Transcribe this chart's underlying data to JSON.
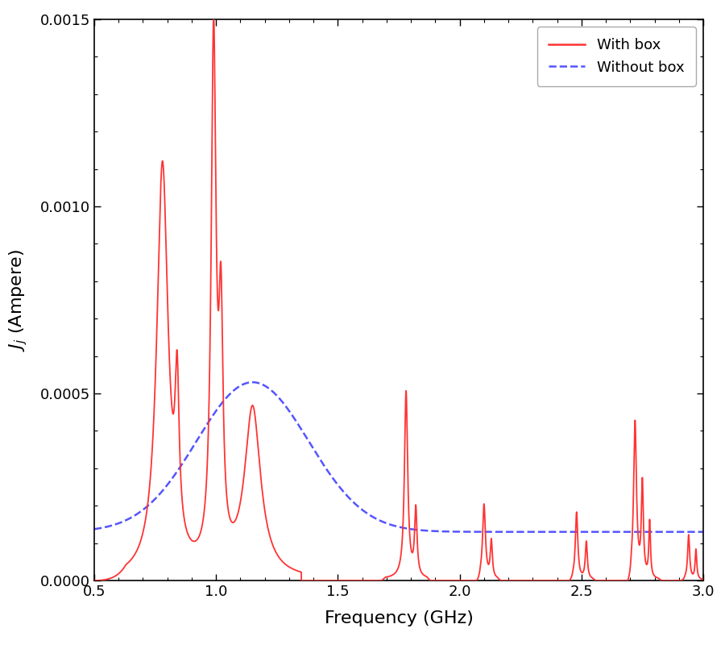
{
  "xlabel": "Frequency (GHz)",
  "ylabel": "J$_j$ (Ampere)",
  "xlim": [
    0.5,
    3.0
  ],
  "ylim": [
    0.0,
    0.0015
  ],
  "legend_with_box": "With box",
  "legend_without_box": "Without box",
  "color_with_box": "#FF3333",
  "color_without_box": "#5555FF",
  "background_color": "#ffffff",
  "figsize": [
    9.0,
    8.0
  ],
  "dpi": 100
}
